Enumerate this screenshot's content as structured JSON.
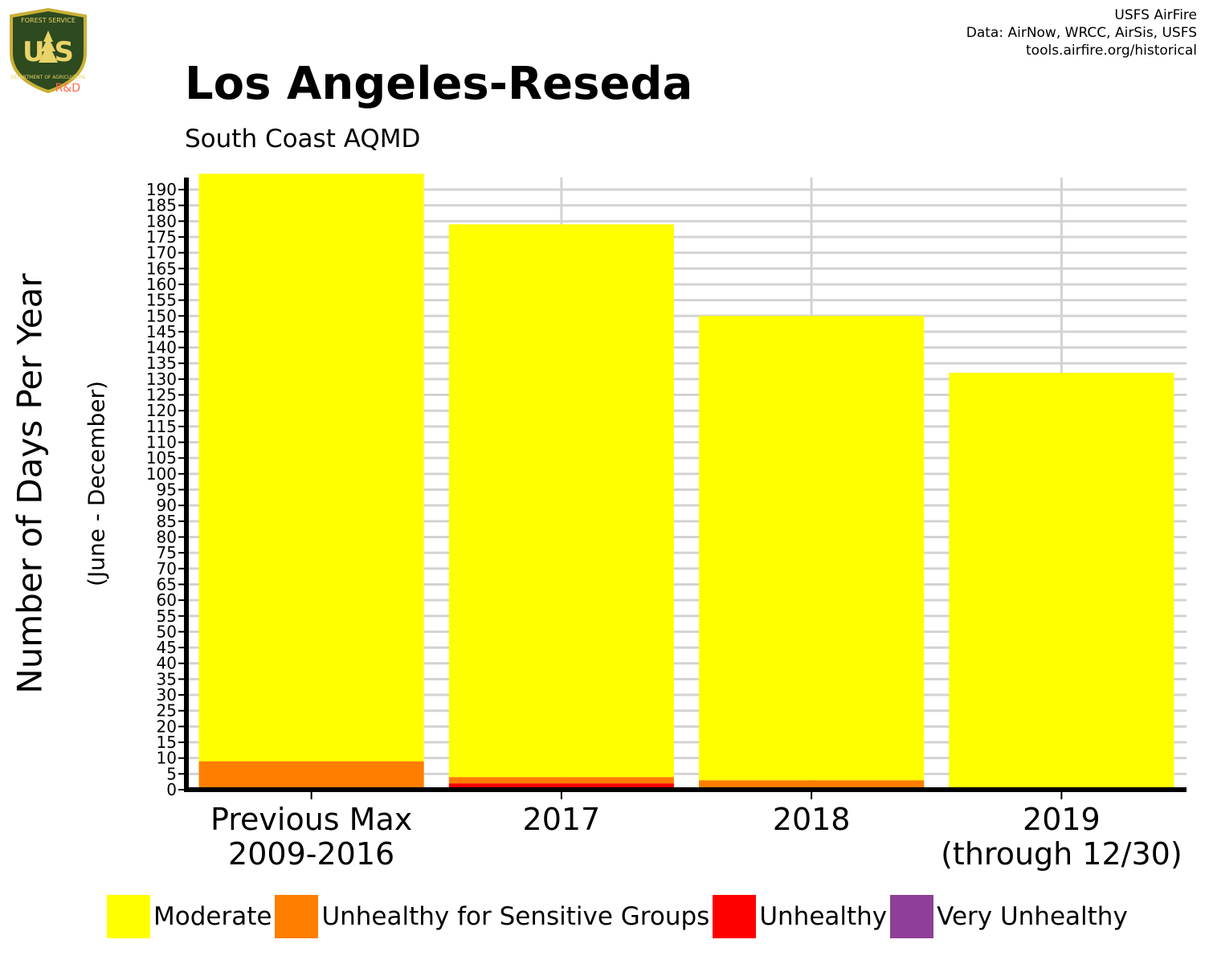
{
  "header": {
    "logo": {
      "text": "U S",
      "small_text": "FOREST SERVICE",
      "bottom_text": "DEPARTMENT OF AGRICULTURE",
      "suffix": "R&D"
    },
    "credits": [
      "USFS AirFire",
      "Data: AirNow, WRCC, AirSis, USFS",
      "tools.airfire.org/historical"
    ]
  },
  "chart_data": {
    "type": "bar",
    "stacked": true,
    "title": "Los Angeles-Reseda",
    "subtitle": "South Coast AQMD",
    "ylabel": "Number of Days Per Year",
    "ylabel_sub": "(June - December)",
    "xlabel": "",
    "ylim": [
      0,
      190
    ],
    "ytick_step": 5,
    "grid": true,
    "legend_position": "bottom",
    "categories": [
      [
        "Previous Max",
        "2009-2016"
      ],
      [
        "2017"
      ],
      [
        "2018"
      ],
      [
        "2019",
        "(through 12/30)"
      ]
    ],
    "series": [
      {
        "name": "Moderate",
        "color": "#FFFF00",
        "values": [
          186,
          175,
          147,
          132
        ]
      },
      {
        "name": "Unhealthy for Sensitive Groups",
        "color": "#FF7E00",
        "values": [
          9,
          2,
          3,
          0
        ]
      },
      {
        "name": "Unhealthy",
        "color": "#FF0000",
        "values": [
          0,
          2,
          0,
          0
        ]
      },
      {
        "name": "Very Unhealthy",
        "color": "#8F3F97",
        "values": [
          0,
          0,
          0,
          0
        ]
      }
    ]
  }
}
